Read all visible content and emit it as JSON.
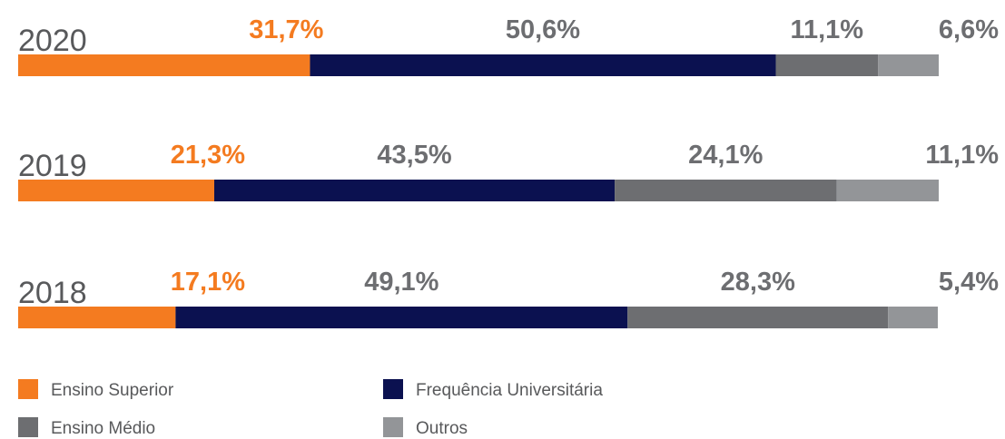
{
  "chart_data": {
    "type": "bar",
    "orientation": "horizontal",
    "stacked": true,
    "categories": [
      "2020",
      "2019",
      "2018"
    ],
    "series": [
      {
        "name": "Ensino Superior",
        "color": "#f47b20",
        "values": [
          31.7,
          21.3,
          17.1
        ],
        "value_labels": [
          "31,7%",
          "21,3%",
          "17,1%"
        ]
      },
      {
        "name": "Frequência Universitária",
        "color": "#0b1150",
        "values": [
          50.6,
          43.5,
          49.1
        ],
        "value_labels": [
          "50,6%",
          "43,5%",
          "49,1%"
        ]
      },
      {
        "name": "Ensino Médio",
        "color": "#6d6e71",
        "values": [
          11.1,
          24.1,
          28.3
        ],
        "value_labels": [
          "11,1%",
          "24,1%",
          "28,3%"
        ]
      },
      {
        "name": "Outros",
        "color": "#939598",
        "values": [
          6.6,
          11.1,
          5.4
        ],
        "value_labels": [
          "6,6%",
          "11,1%",
          "5,4%"
        ]
      }
    ],
    "xlim": [
      0,
      100
    ]
  }
}
